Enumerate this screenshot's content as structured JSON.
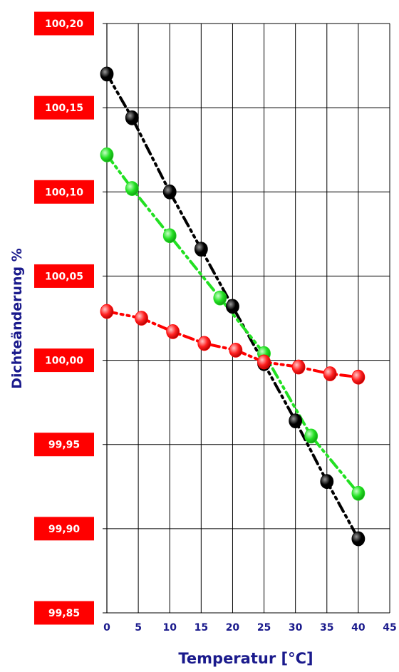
{
  "chart_data": {
    "type": "line",
    "title": "",
    "xlabel": "Temperatur [°C]",
    "ylabel": "Dichteänderung %",
    "xlim": [
      0,
      45
    ],
    "ylim": [
      99.85,
      100.2
    ],
    "x_ticks": [
      0,
      5,
      10,
      15,
      20,
      25,
      30,
      35,
      40,
      45
    ],
    "x_tick_labels": [
      "0",
      "5",
      "10",
      "15",
      "20",
      "25",
      "30",
      "35",
      "40",
      "45"
    ],
    "y_ticks": [
      100.2,
      100.15,
      100.1,
      100.05,
      100.0,
      99.95,
      99.9,
      99.85
    ],
    "y_tick_labels": [
      "100,20",
      "100,15",
      "100,10",
      "100,05",
      "100,00",
      "99,95",
      "99,90",
      "99,85"
    ],
    "grid": true,
    "legend": "none",
    "series": [
      {
        "color": "#000000",
        "x": [
          0,
          4,
          10,
          15,
          20,
          25,
          30,
          35,
          40
        ],
        "y": [
          100.17,
          100.144,
          100.1,
          100.066,
          100.032,
          99.998,
          99.964,
          99.928,
          99.894
        ]
      },
      {
        "color": "#22e022",
        "x": [
          0,
          4,
          10,
          18,
          25,
          32.5,
          40
        ],
        "y": [
          100.122,
          100.102,
          100.074,
          100.037,
          100.004,
          99.955,
          99.921
        ]
      },
      {
        "color": "#ff0000",
        "x": [
          0,
          5.5,
          10.5,
          15.5,
          20.5,
          25,
          30.5,
          35.5,
          40
        ],
        "y": [
          100.029,
          100.025,
          100.017,
          100.01,
          100.006,
          99.999,
          99.996,
          99.992,
          99.99
        ]
      }
    ]
  },
  "colors": {
    "tick_box_bg": "#ff0000",
    "tick_box_text": "#ffffff",
    "axis_text": "#1a1a8c",
    "grid": "#000000"
  }
}
